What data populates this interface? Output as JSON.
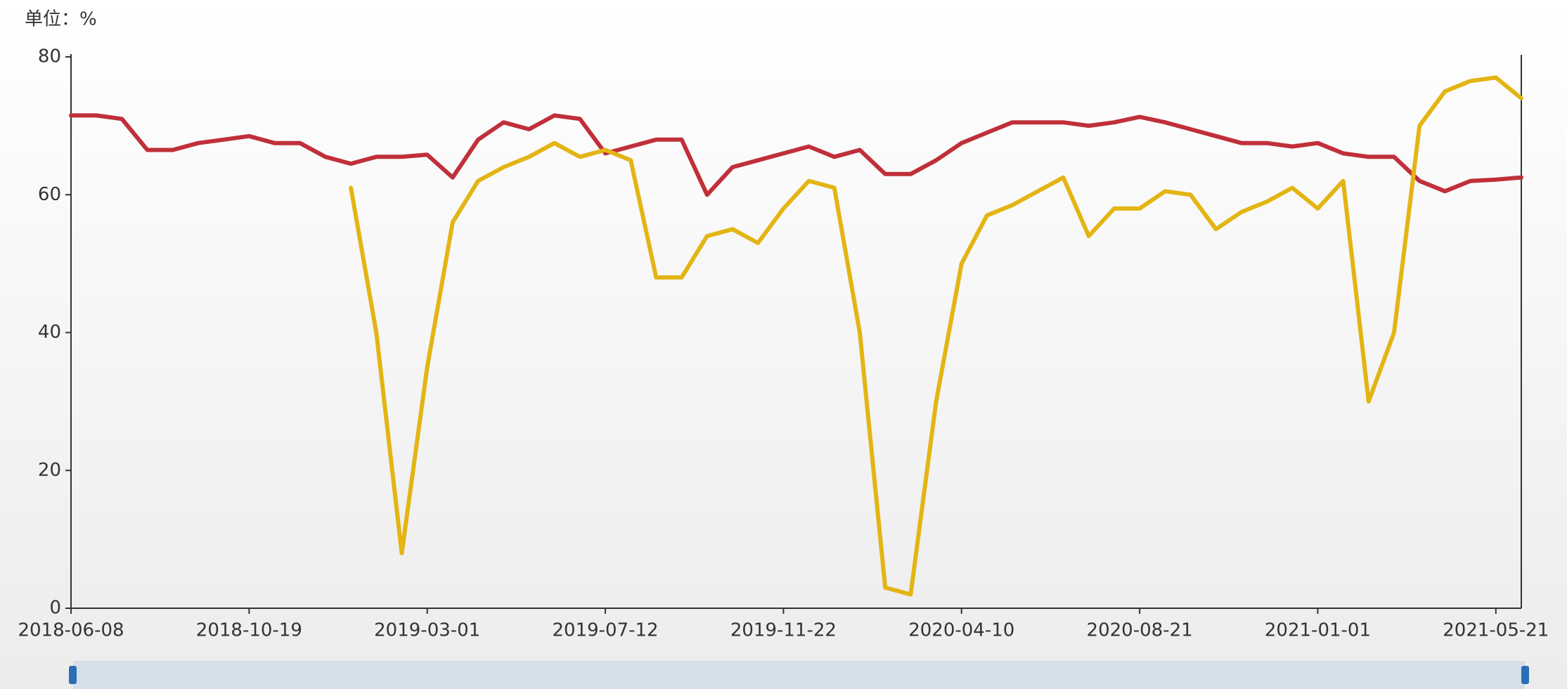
{
  "chart_data": {
    "type": "line",
    "unit_label": "单位：%",
    "categories": [
      "2018-06-08",
      null,
      null,
      null,
      null,
      null,
      null,
      "2018-10-19",
      null,
      null,
      null,
      null,
      null,
      null,
      "2019-03-01",
      null,
      null,
      null,
      null,
      null,
      null,
      "2019-07-12",
      null,
      null,
      null,
      null,
      null,
      null,
      "2019-11-22",
      null,
      null,
      null,
      null,
      null,
      null,
      "2020-04-10",
      null,
      null,
      null,
      null,
      null,
      null,
      "2020-08-21",
      null,
      null,
      null,
      null,
      null,
      null,
      "2021-01-01",
      null,
      null,
      null,
      null,
      null,
      null,
      "2021-05-21",
      null
    ],
    "series": [
      {
        "color": "#c0303a",
        "values": [
          71.5,
          71.5,
          71,
          66.5,
          66.5,
          67.5,
          68,
          68.5,
          67.5,
          67.5,
          65.5,
          64.5,
          65.5,
          65.5,
          65.8,
          62.5,
          68,
          70.5,
          69.5,
          71.5,
          71,
          66,
          67,
          68,
          68,
          60,
          64,
          65,
          66,
          67,
          65.5,
          66.5,
          63,
          63,
          65,
          67.5,
          69,
          70.5,
          70.5,
          70.5,
          70,
          70.5,
          71.3,
          70.5,
          69.5,
          68.5,
          67.5,
          67.5,
          67,
          67.5,
          66,
          65.5,
          65.5,
          62,
          60.5,
          62,
          62.2,
          62.5
        ]
      },
      {
        "color": "#e3b514",
        "values": [
          null,
          null,
          null,
          null,
          null,
          null,
          null,
          null,
          null,
          null,
          null,
          61,
          40,
          8,
          35,
          56,
          62,
          64,
          65.5,
          67.5,
          65.5,
          66.5,
          65,
          48,
          48,
          54,
          55,
          53,
          58,
          62,
          61,
          40,
          3,
          2,
          30,
          50,
          57,
          58.5,
          60.5,
          62.5,
          54,
          58,
          58,
          60.5,
          60,
          55,
          57.5,
          59,
          61,
          58,
          62,
          30,
          40,
          70,
          75,
          76.5,
          77,
          74
        ]
      }
    ],
    "ylim": [
      0,
      80
    ],
    "yticks": [
      0,
      20,
      40,
      60,
      80
    ],
    "grid": false
  }
}
